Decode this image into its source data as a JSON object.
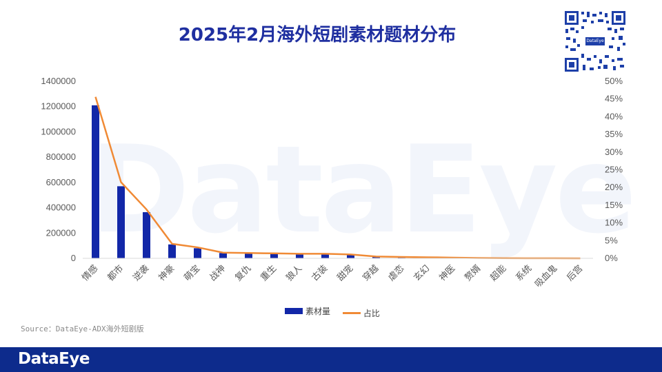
{
  "title": "2025年2月海外短剧素材题材分布",
  "watermark": "DataEye",
  "qr_label": "DataEye",
  "source": "Source：DataEye-ADX海外短剧版",
  "footer_logo": "DataEye",
  "colors": {
    "bar": "#1227a8",
    "line": "#f08a35",
    "footer": "#0d2b8c",
    "title": "#1f2fa0"
  },
  "legend": {
    "bar_label": "素材量",
    "line_label": "占比"
  },
  "chart_data": {
    "type": "bar",
    "categories": [
      "情感",
      "都市",
      "逆袭",
      "神豪",
      "萌宝",
      "战神",
      "复仇",
      "重生",
      "狼人",
      "古装",
      "甜宠",
      "穿越",
      "虐恋",
      "玄幻",
      "神医",
      "赘婿",
      "超能",
      "系统",
      "吸血鬼",
      "后宫"
    ],
    "series": [
      {
        "name": "素材量",
        "type": "bar",
        "axis": "left",
        "values": [
          1210000,
          570000,
          365000,
          110000,
          80000,
          42000,
          40000,
          36000,
          35000,
          34000,
          30000,
          12000,
          10000,
          9000,
          5000,
          2500,
          1000,
          600,
          400,
          300
        ]
      },
      {
        "name": "占比",
        "type": "line",
        "axis": "right",
        "values": [
          45.6,
          21.5,
          13.8,
          4.1,
          3.1,
          1.6,
          1.5,
          1.4,
          1.3,
          1.3,
          1.1,
          0.5,
          0.4,
          0.3,
          0.2,
          0.1,
          0.04,
          0.02,
          0.02,
          0.01
        ]
      }
    ],
    "ylim_left": [
      0,
      1400000
    ],
    "yticks_left": [
      "0",
      "200000",
      "400000",
      "600000",
      "800000",
      "1000000",
      "1200000",
      "1400000"
    ],
    "ylim_right": [
      0,
      50
    ],
    "yticks_right": [
      "0%",
      "5%",
      "10%",
      "15%",
      "20%",
      "25%",
      "30%",
      "35%",
      "40%",
      "45%",
      "50%"
    ],
    "grid": false,
    "legend_position": "bottom"
  }
}
